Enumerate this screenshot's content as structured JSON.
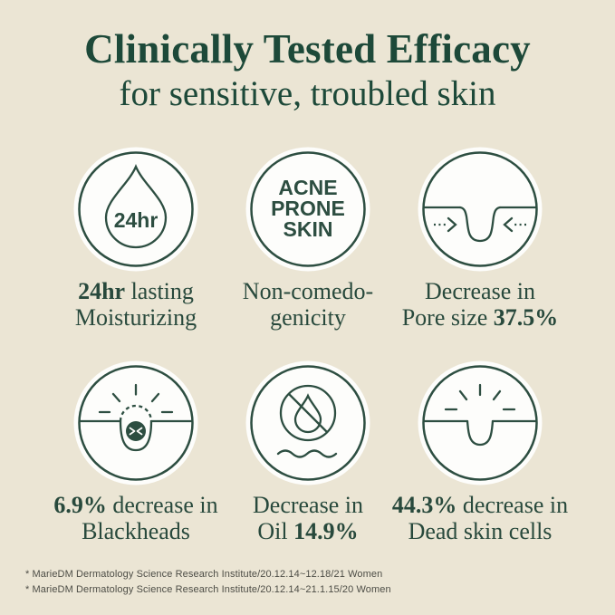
{
  "colors": {
    "bg": "#ebe5d4",
    "green": "#1d4939",
    "caption": "#28493c",
    "stroke": "#2d4e41",
    "disc": "#fdfdfb",
    "footnote": "#4d4d46"
  },
  "header": {
    "title": "Clinically Tested Efficacy",
    "subtitle": "for sensitive, troubled skin"
  },
  "cards": [
    {
      "icon": "water-drop-24hr-icon",
      "icon_label": "24hr",
      "caption_lines": [
        [
          {
            "text": "24hr",
            "bold": true
          },
          {
            "text": " lasting",
            "bold": false
          }
        ],
        [
          {
            "text": "Moisturizing",
            "bold": false
          }
        ]
      ]
    },
    {
      "icon": "acne-prone-skin-icon",
      "icon_text": [
        "ACNE",
        "PRONE",
        "SKIN"
      ],
      "caption_lines": [
        [
          {
            "text": "Non-comedo-",
            "bold": false
          }
        ],
        [
          {
            "text": "genicity",
            "bold": false
          }
        ]
      ]
    },
    {
      "icon": "pore-shrink-icon",
      "caption_lines": [
        [
          {
            "text": "Decrease in",
            "bold": false
          }
        ],
        [
          {
            "text": "Pore size ",
            "bold": false
          },
          {
            "text": "37.5%",
            "bold": true
          }
        ]
      ]
    },
    {
      "icon": "blackhead-removal-icon",
      "caption_lines": [
        [
          {
            "text": "6.9%",
            "bold": true
          },
          {
            "text": " decrease in",
            "bold": false
          }
        ],
        [
          {
            "text": "Blackheads",
            "bold": false
          }
        ]
      ]
    },
    {
      "icon": "no-oil-icon",
      "caption_lines": [
        [
          {
            "text": "Decrease in",
            "bold": false
          }
        ],
        [
          {
            "text": "Oil ",
            "bold": false
          },
          {
            "text": "14.9%",
            "bold": true
          }
        ]
      ]
    },
    {
      "icon": "clean-pore-dead-skin-icon",
      "caption_lines": [
        [
          {
            "text": "44.3%",
            "bold": true
          },
          {
            "text": " decrease in",
            "bold": false
          }
        ],
        [
          {
            "text": "Dead skin cells",
            "bold": false
          }
        ]
      ]
    }
  ],
  "footnotes": [
    "* MarieDM Dermatology Science Research Institute/20.12.14~12.18/21 Women",
    "* MarieDM Dermatology Science Research Institute/20.12.14~21.1.15/20 Women"
  ]
}
